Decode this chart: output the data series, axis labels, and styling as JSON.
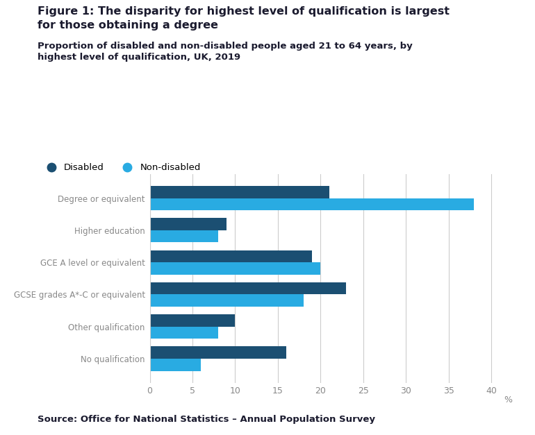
{
  "title_line1": "Figure 1: The disparity for highest level of qualification is largest",
  "title_line2": "for those obtaining a degree",
  "subtitle_line1": "Proportion of disabled and non-disabled people aged 21 to 64 years, by",
  "subtitle_line2": "highest level of qualification, UK, 2019",
  "source": "Source: Office for National Statistics – Annual Population Survey",
  "categories": [
    "Degree or equivalent",
    "Higher education",
    "GCE A level or equivalent",
    "GCSE grades A*-C or equivalent",
    "Other qualification",
    "No qualification"
  ],
  "disabled_values": [
    21,
    9,
    19,
    23,
    10,
    16
  ],
  "nondisabled_values": [
    38,
    8,
    20,
    18,
    8,
    6
  ],
  "disabled_color": "#1b4f72",
  "nondisabled_color": "#29abe2",
  "legend_disabled": "Disabled",
  "legend_nondisabled": "Non-disabled",
  "xlim": [
    0,
    42
  ],
  "xticks": [
    0,
    5,
    10,
    15,
    20,
    25,
    30,
    35,
    40
  ],
  "xlabel": "%",
  "bar_height": 0.38,
  "background_color": "#ffffff",
  "grid_color": "#cccccc",
  "label_color": "#888888",
  "title_color": "#1a1a2e",
  "subtitle_color": "#1a1a2e"
}
